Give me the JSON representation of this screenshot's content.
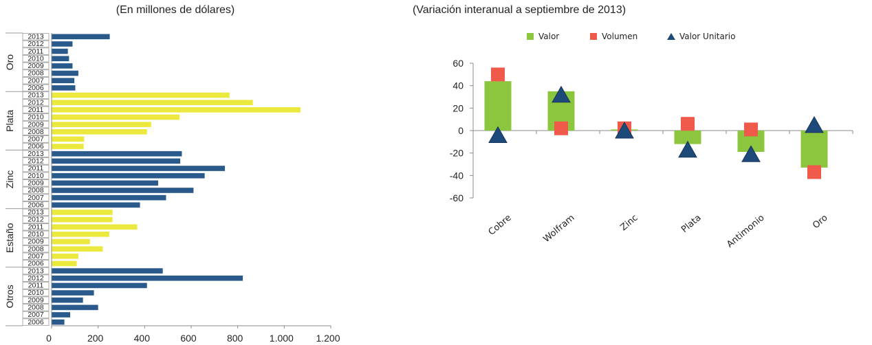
{
  "chart_data": [
    {
      "type": "bar",
      "orientation": "horizontal",
      "subtitle": "(En millones de dólares)",
      "xlim": [
        0,
        1200
      ],
      "xticks": [
        "0",
        "200",
        "400",
        "600",
        "800",
        "1.000",
        "1.200"
      ],
      "grid": false,
      "colors": {
        "dark": "#2a5a8c",
        "light": "#ebe93e"
      },
      "groups": [
        {
          "name": "Oro",
          "color": "dark",
          "categories": [
            "2013",
            "2012",
            "2011",
            "2010",
            "2009",
            "2008",
            "2007",
            "2006"
          ],
          "values": [
            250,
            90,
            70,
            75,
            90,
            115,
            98,
            102
          ]
        },
        {
          "name": "Plata",
          "color": "light",
          "categories": [
            "2013",
            "2012",
            "2011",
            "2010",
            "2009",
            "2008",
            "2007",
            "2006"
          ],
          "values": [
            765,
            865,
            1070,
            550,
            428,
            410,
            140,
            138
          ]
        },
        {
          "name": "Zinc",
          "color": "dark",
          "categories": [
            "2013",
            "2012",
            "2011",
            "2010",
            "2009",
            "2008",
            "2007",
            "2006"
          ],
          "values": [
            560,
            553,
            745,
            658,
            458,
            610,
            492,
            380
          ]
        },
        {
          "name": "Estaño",
          "color": "light",
          "categories": [
            "2013",
            "2012",
            "2011",
            "2010",
            "2009",
            "2008",
            "2007",
            "2006"
          ],
          "values": [
            262,
            262,
            368,
            248,
            165,
            220,
            115,
            108
          ]
        },
        {
          "name": "Otros",
          "color": "dark",
          "categories": [
            "2013",
            "2012",
            "2011",
            "2010",
            "2009",
            "2008",
            "2007",
            "2006"
          ],
          "values": [
            478,
            822,
            410,
            182,
            135,
            200,
            80,
            55
          ]
        }
      ]
    },
    {
      "type": "bar",
      "subtitle": "(Variación interanual a septiembre de 2013)",
      "ylim": [
        -60,
        60
      ],
      "yticks": [
        60,
        40,
        20,
        0,
        -20,
        -40,
        -60
      ],
      "grid": false,
      "legend": "top",
      "categories": [
        "Cobre",
        "Wolfram",
        "Zinc",
        "Plata",
        "Antimonio",
        "Oro"
      ],
      "series": [
        {
          "name": "Valor",
          "marker": "bar",
          "color": "#8cc63f",
          "values": [
            44,
            35,
            1,
            -12,
            -19,
            -33
          ]
        },
        {
          "name": "Volumen",
          "marker": "square",
          "color": "#ef5a4a",
          "values": [
            50,
            2,
            2,
            6,
            1,
            -37
          ]
        },
        {
          "name": "Valor Unitario",
          "marker": "triangle",
          "color": "#1e4a7a",
          "values": [
            -4,
            32,
            0,
            -17,
            -21,
            5
          ]
        }
      ]
    }
  ]
}
